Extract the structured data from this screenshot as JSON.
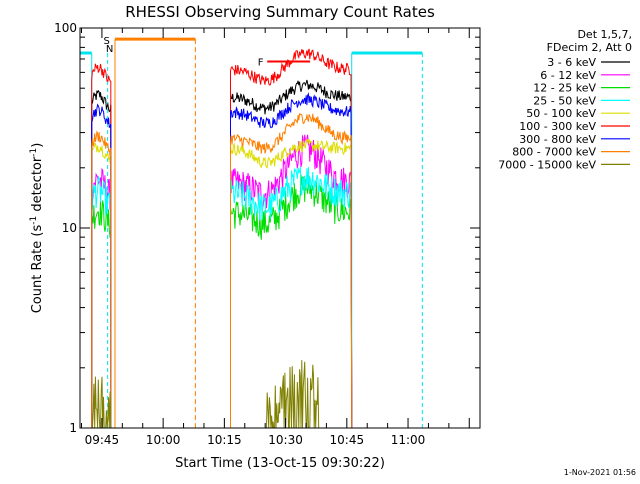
{
  "chart_data": {
    "type": "line",
    "title": "RHESSI Observing Summary Count Rates",
    "xlabel": "Start Time (13-Oct-15 09:30:22)",
    "ylabel_main": "Count Rate (s",
    "ylabel_sup1": "-1",
    "ylabel_mid": " detector",
    "ylabel_sup2": "-1",
    "ylabel_end": ")",
    "y_scale": "log",
    "ylim": [
      1,
      100
    ],
    "xlim_minutes": [
      9.63,
      107.63
    ],
    "x_ticks": [
      {
        "label": "09:45",
        "t": 15
      },
      {
        "label": "10:00",
        "t": 30
      },
      {
        "label": "10:15",
        "t": 45
      },
      {
        "label": "10:30",
        "t": 60
      },
      {
        "label": "10:45",
        "t": 75
      },
      {
        "label": "11:00",
        "t": 90
      }
    ],
    "y_ticks": [
      {
        "label": "1",
        "v": 1
      },
      {
        "label": "10",
        "v": 10
      },
      {
        "label": "100",
        "v": 100
      }
    ],
    "detector_info": [
      "Det 1,5,7,",
      "FDecim 2, Att 0"
    ],
    "timestamp": "1-Nov-2021 01:56",
    "flags": {
      "saa_label": "S",
      "night_label": "N",
      "flare_label": "F"
    },
    "segments": [
      {
        "start": 12.5,
        "end": 17.2
      },
      {
        "start": 46.5,
        "end": 76.2
      }
    ],
    "series": [
      {
        "name": "3 - 6 keV",
        "color": "#000000",
        "base": 45,
        "peak": 52,
        "dip": 38
      },
      {
        "name": "6 - 12 keV",
        "color": "#ff00ff",
        "base": 17,
        "peak": 25,
        "dip": 14
      },
      {
        "name": "12 - 25 keV",
        "color": "#00dd00",
        "base": 12,
        "peak": 16,
        "dip": 10
      },
      {
        "name": "25 - 50 keV",
        "color": "#00ffff",
        "base": 15,
        "peak": 18,
        "dip": 12
      },
      {
        "name": "50 - 100 keV",
        "color": "#dddd00",
        "base": 25,
        "peak": 26,
        "dip": 20
      },
      {
        "name": "100 - 300 keV",
        "color": "#ff0000",
        "base": 62,
        "peak": 75,
        "dip": 52
      },
      {
        "name": "300 - 800 keV",
        "color": "#0000ff",
        "base": 38,
        "peak": 44,
        "dip": 32
      },
      {
        "name": "800 - 7000 keV",
        "color": "#ff7f00",
        "base": 28,
        "peak": 36,
        "dip": 24
      },
      {
        "name": "7000 - 15000 keV",
        "color": "#808000",
        "base": 1.5,
        "peak": 1.8,
        "dip": 1.2
      }
    ],
    "colors": {
      "saa": "#ff7f00",
      "night": "#00e5ee",
      "flare": "#ff0000"
    }
  }
}
